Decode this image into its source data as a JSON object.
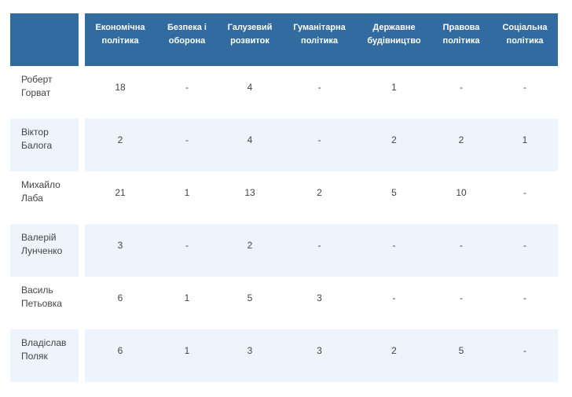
{
  "table": {
    "columns": [
      "Економічна політика",
      "Безпека і оборона",
      "Галузевий розвиток",
      "Гуманітарна політика",
      "Державне будівництво",
      "Правова політика",
      "Соціальна політика"
    ],
    "rows": [
      {
        "name": "Роберт Горват",
        "values": [
          18,
          "-",
          4,
          "-",
          1,
          "-",
          "-"
        ]
      },
      {
        "name": "Віктор Балога",
        "values": [
          2,
          "-",
          4,
          "-",
          2,
          2,
          1
        ]
      },
      {
        "name": "Михайло Лаба",
        "values": [
          21,
          1,
          13,
          2,
          5,
          10,
          "-"
        ]
      },
      {
        "name": "Валерій Лунченко",
        "values": [
          3,
          "-",
          2,
          "-",
          "-",
          "-",
          "-"
        ]
      },
      {
        "name": "Василь Петьовка",
        "values": [
          6,
          1,
          5,
          3,
          "-",
          "-",
          "-"
        ]
      },
      {
        "name": "Владіслав Поляк",
        "values": [
          6,
          1,
          3,
          3,
          2,
          5,
          "-"
        ]
      }
    ]
  }
}
